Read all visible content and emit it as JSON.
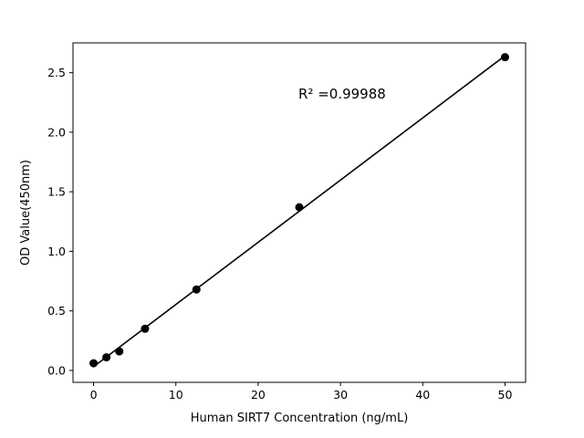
{
  "chart_data": {
    "type": "scatter",
    "title": "",
    "xlabel": "Human SIRT7 Concentration (ng/mL)",
    "ylabel": "OD Value(450nm)",
    "annotation": "R² =0.99988",
    "x": [
      0,
      1.56,
      3.125,
      6.25,
      12.5,
      25,
      50
    ],
    "y": [
      0.06,
      0.11,
      0.16,
      0.35,
      0.68,
      1.37,
      2.63
    ],
    "xlim": [
      -2.5,
      52.5
    ],
    "ylim": [
      -0.1,
      2.75
    ],
    "xticks": [
      0,
      10,
      20,
      30,
      40,
      50
    ],
    "yticks": [
      0.0,
      0.5,
      1.0,
      1.5,
      2.0,
      2.5
    ],
    "fit_line": true,
    "grid": false,
    "legend_position": "none",
    "marker_color": "#000000",
    "line_color": "#000000",
    "background_color": "#ffffff"
  }
}
